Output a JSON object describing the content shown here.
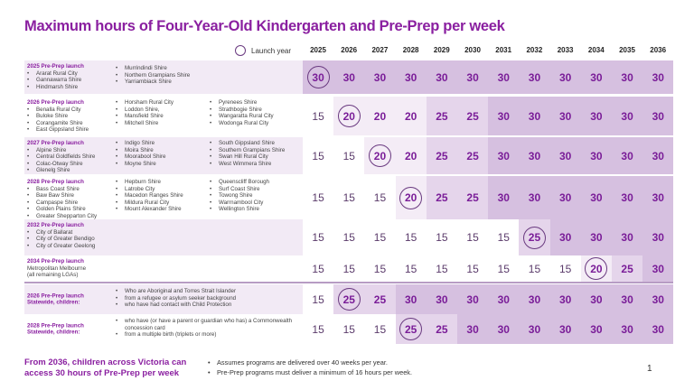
{
  "title": "Maximum hours of Four-Year-Old Kindergarten and Pre-Prep per week",
  "legend": "Launch year",
  "years": [
    "2025",
    "2026",
    "2027",
    "2028",
    "2029",
    "2030",
    "2031",
    "2032",
    "2033",
    "2034",
    "2035",
    "2036"
  ],
  "colors": {
    "accent": "#8a1fa0",
    "shade20": "#f4ecf6",
    "shade25": "#e5d5eb",
    "shade30": "#d6c0e0"
  },
  "rows": [
    {
      "heading": "2025 Pre-Prep launch",
      "cols": [
        [
          "Ararat Rural City",
          "Gannawarra Shire",
          "Hindmarsh Shire"
        ],
        [
          "Murrindindi Shire",
          "Northern Grampians Shire",
          "Yarriambiack Shire"
        ]
      ],
      "values": [
        30,
        30,
        30,
        30,
        30,
        30,
        30,
        30,
        30,
        30,
        30,
        30
      ],
      "launch": 0
    },
    {
      "heading": "2026 Pre-Prep launch",
      "cols": [
        [
          "Benalla Rural City",
          "Buloke Shire",
          "Corangamite Shire",
          "East Gippsland Shire"
        ],
        [
          "Horsham Rural City",
          "Loddon Shire,",
          "Mansfield Shire",
          "Mitchell Shire"
        ],
        [
          "Pyrenees Shire",
          "Strathbogie Shire",
          "Wangaratta Rural City",
          "Wodonga Rural City"
        ]
      ],
      "values": [
        15,
        20,
        20,
        20,
        25,
        25,
        30,
        30,
        30,
        30,
        30,
        30
      ],
      "launch": 1
    },
    {
      "heading": "2027 Pre-Prep launch",
      "cols": [
        [
          "Alpine Shire",
          "Central Goldfields Shire",
          "Colac-Otway Shire",
          "Glenelg Shire"
        ],
        [
          "Indigo Shire",
          "Moira Shire",
          "Moorabool Shire",
          "Moyne Shire"
        ],
        [
          "South Gippsland Shire",
          "Southern Grampians Shire",
          "Swan Hill Rural City",
          "West Wimmera Shire"
        ]
      ],
      "values": [
        15,
        15,
        20,
        20,
        25,
        25,
        30,
        30,
        30,
        30,
        30,
        30
      ],
      "launch": 2
    },
    {
      "heading": "2028 Pre-Prep launch",
      "cols": [
        [
          "Bass Coast Shire",
          "Baw Baw Shire",
          "Campaspe Shire",
          "Golden Plains Shire",
          "Greater Shepparton City"
        ],
        [
          "Hepburn Shire",
          "Latrobe City",
          "Macedon Ranges Shire",
          "Mildura Rural City",
          "Mount Alexander Shire"
        ],
        [
          "Queenscliff Borough",
          "Surf Coast Shire",
          "Towong Shire",
          "Warrnambool City",
          "Wellington Shire"
        ]
      ],
      "values": [
        15,
        15,
        15,
        20,
        25,
        25,
        30,
        30,
        30,
        30,
        30,
        30
      ],
      "launch": 3
    },
    {
      "heading": "2032 Pre-Prep launch",
      "cols": [
        [
          "City of Ballarat",
          "City of Greater Bendigo",
          "City of Greater Geelong"
        ]
      ],
      "values": [
        15,
        15,
        15,
        15,
        15,
        15,
        15,
        25,
        30,
        30,
        30,
        30
      ],
      "launch": 7
    },
    {
      "heading": "2034 Pre-Prep launch",
      "text": [
        "Metropolitan Melbourne",
        "(all remaining LGAs)"
      ],
      "cols": [],
      "values": [
        15,
        15,
        15,
        15,
        15,
        15,
        15,
        15,
        15,
        20,
        25,
        30
      ],
      "launch": 9
    },
    {
      "heading": "2026 Pre-Prep launch",
      "heading2": "Statewide, children:",
      "cols": [
        [],
        [
          "Who are Aboriginal  and Torres Strait Islander",
          "from a refugee or asylum seeker background",
          "who have had contact with Child Protection"
        ]
      ],
      "values": [
        15,
        25,
        25,
        30,
        30,
        30,
        30,
        30,
        30,
        30,
        30,
        30
      ],
      "launch": 1
    },
    {
      "heading": "2028 Pre-Prep launch",
      "heading2": "Statewide, children:",
      "cols": [
        [],
        [
          "who have (or have a parent or guardian who has) a Commonwealth concession card",
          "from a multiple birth (triplets or more)"
        ]
      ],
      "values": [
        15,
        15,
        15,
        25,
        25,
        30,
        30,
        30,
        30,
        30,
        30,
        30
      ],
      "launch": 3
    }
  ],
  "footer": {
    "headline": "From 2036, children across Victoria can access 30 hours of Pre-Prep per week",
    "notes": [
      "Assumes programs are delivered over 40 weeks per year.",
      "Pre-Prep programs must deliver a minimum of 16 hours per week."
    ],
    "page": "1"
  }
}
